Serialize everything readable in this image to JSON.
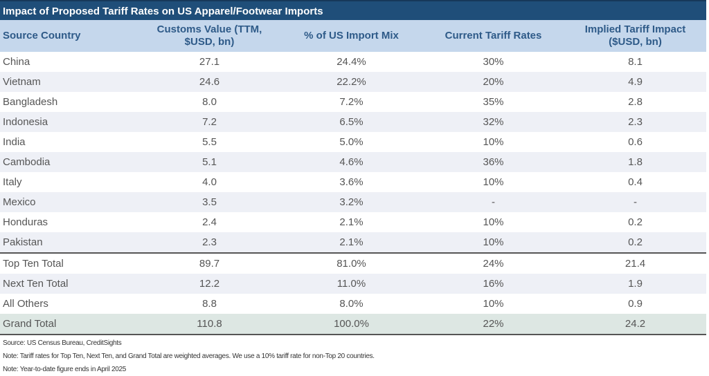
{
  "title": "Impact of Proposed Tariff Rates on US Apparel/Footwear Imports",
  "columns": [
    "Source Country",
    "Customs Value (TTM, $USD, bn)",
    "% of US Import Mix",
    "Current Tariff Rates",
    "Implied Tariff Impact ($USD, bn)"
  ],
  "columns_lines": [
    [
      "Source Country"
    ],
    [
      "Customs Value (TTM,",
      "$USD, bn)"
    ],
    [
      "% of US Import Mix"
    ],
    [
      "Current Tariff Rates"
    ],
    [
      "Implied Tariff Impact",
      "($USD, bn)"
    ]
  ],
  "rows": [
    [
      "China",
      "27.1",
      "24.4%",
      "30%",
      "8.1"
    ],
    [
      "Vietnam",
      "24.6",
      "22.2%",
      "20%",
      "4.9"
    ],
    [
      "Bangladesh",
      "8.0",
      "7.2%",
      "35%",
      "2.8"
    ],
    [
      "Indonesia",
      "7.2",
      "6.5%",
      "32%",
      "2.3"
    ],
    [
      "India",
      "5.5",
      "5.0%",
      "10%",
      "0.6"
    ],
    [
      "Cambodia",
      "5.1",
      "4.6%",
      "36%",
      "1.8"
    ],
    [
      "Italy",
      "4.0",
      "3.6%",
      "10%",
      "0.4"
    ],
    [
      "Mexico",
      "3.5",
      "3.2%",
      "-",
      "-"
    ],
    [
      "Honduras",
      "2.4",
      "2.1%",
      "10%",
      "0.2"
    ],
    [
      "Pakistan",
      "2.3",
      "2.1%",
      "10%",
      "0.2"
    ]
  ],
  "totals": [
    [
      "Top Ten Total",
      "89.7",
      "81.0%",
      "24%",
      "21.4"
    ],
    [
      "Next Ten Total",
      "12.2",
      "11.0%",
      "16%",
      "1.9"
    ],
    [
      "All Others",
      "8.8",
      "8.0%",
      "10%",
      "0.9"
    ]
  ],
  "grand_total": [
    "Grand Total",
    "110.8",
    "100.0%",
    "22%",
    "24.2"
  ],
  "notes": [
    "Source: US Census Bureau, CreditSights",
    "Note: Tariff rates for Top Ten, Next Ten, and Grand Total are weighted averages. We use a 10% tariff rate for non-Top 20 countries.",
    "Note: Year-to-date figure ends in April 2025"
  ],
  "colors": {
    "title_bg": "#1f4e79",
    "header_bg": "#c5d7ec",
    "header_text": "#2e5a88",
    "alt_row_bg": "#eef0f6",
    "grand_total_bg": "#dde7e3"
  }
}
